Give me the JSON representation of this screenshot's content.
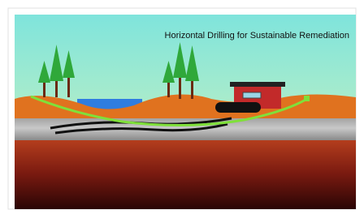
{
  "title": "Horizontal Drilling for Sustainable Remediation"
}
